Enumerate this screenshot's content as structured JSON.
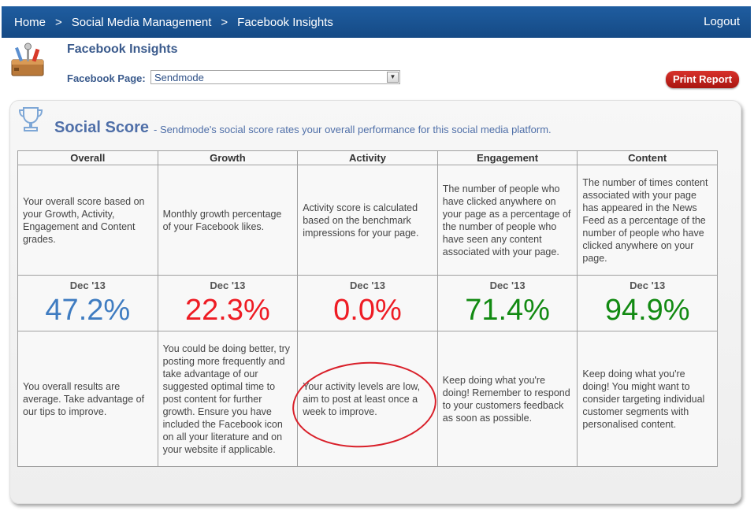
{
  "nav": {
    "home": "Home",
    "sep1": ">",
    "section": "Social Media Management",
    "sep2": ">",
    "current": "Facebook Insights",
    "logout": "Logout"
  },
  "header": {
    "title": "Facebook Insights",
    "fb_page_label": "Facebook Page:",
    "fb_page_value": "Sendmode",
    "print_button": "Print Report"
  },
  "score_section": {
    "title": "Social Score",
    "description": "- Sendmode's social score rates your overall performance for this social media platform."
  },
  "colors": {
    "blue": "#3f7cc1",
    "red": "#ee1c24",
    "green": "#128a12"
  },
  "columns": [
    {
      "header": "Overall",
      "description": "Your overall score based on your Growth, Activity, Engagement and Content grades.",
      "period": "Dec '13",
      "score": "47.2%",
      "score_color": "#3f7cc1",
      "tip": "You overall results are average. Take advantage of our tips to improve."
    },
    {
      "header": "Growth",
      "description": "Monthly growth percentage of your Facebook likes.",
      "period": "Dec '13",
      "score": "22.3%",
      "score_color": "#ee1c24",
      "tip": "You could be doing better, try posting more frequently and take advantage of our suggested optimal time to post content for further growth. Ensure you have included the Facebook icon on all your literature and on your website if applicable."
    },
    {
      "header": "Activity",
      "description": "Activity score is calculated based on the benchmark impressions for your page.",
      "period": "Dec '13",
      "score": "0.0%",
      "score_color": "#ee1c24",
      "tip": "Your activity levels are low, aim to post at least once a week to improve."
    },
    {
      "header": "Engagement",
      "description": "The number of people who have clicked anywhere on your page as a percentage of the number of people who have seen any content associated with your page.",
      "period": "Dec '13",
      "score": "71.4%",
      "score_color": "#128a12",
      "tip": "Keep doing what you're doing! Remember to respond to your customers feedback as soon as possible."
    },
    {
      "header": "Content",
      "description": "The number of times content associated with your page has appeared in the News Feed as a percentage of the number of people who have clicked anywhere on your page.",
      "period": "Dec '13",
      "score": "94.9%",
      "score_color": "#128a12",
      "tip": "Keep doing what you're doing! You might want to consider targeting individual customer segments with personalised content."
    }
  ]
}
